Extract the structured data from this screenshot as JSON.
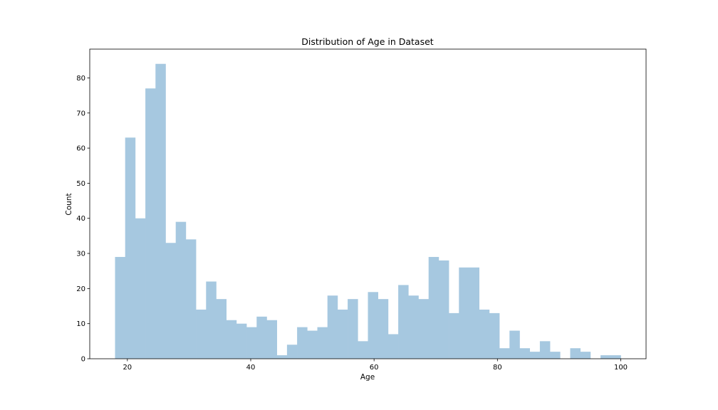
{
  "chart_data": {
    "type": "bar",
    "subtype": "histogram",
    "title": "Distribution of Age in Dataset",
    "xlabel": "Age",
    "ylabel": "Count",
    "xlim": [
      13.9,
      104.1
    ],
    "ylim": [
      0,
      88.2
    ],
    "xticks": [
      20,
      40,
      60,
      80,
      100
    ],
    "yticks": [
      0,
      10,
      20,
      30,
      40,
      50,
      60,
      70,
      80
    ],
    "grid": false,
    "bar_color": "#a6c8e0",
    "bin_start": 18,
    "bin_width": 1.64,
    "values": [
      29,
      63,
      40,
      77,
      84,
      33,
      39,
      34,
      14,
      22,
      17,
      11,
      10,
      9,
      12,
      11,
      1,
      4,
      9,
      8,
      9,
      18,
      14,
      17,
      5,
      19,
      17,
      7,
      21,
      18,
      17,
      29,
      28,
      13,
      26,
      26,
      14,
      13,
      3,
      8,
      3,
      2,
      5,
      2,
      0,
      3,
      2,
      0,
      1,
      1
    ]
  }
}
